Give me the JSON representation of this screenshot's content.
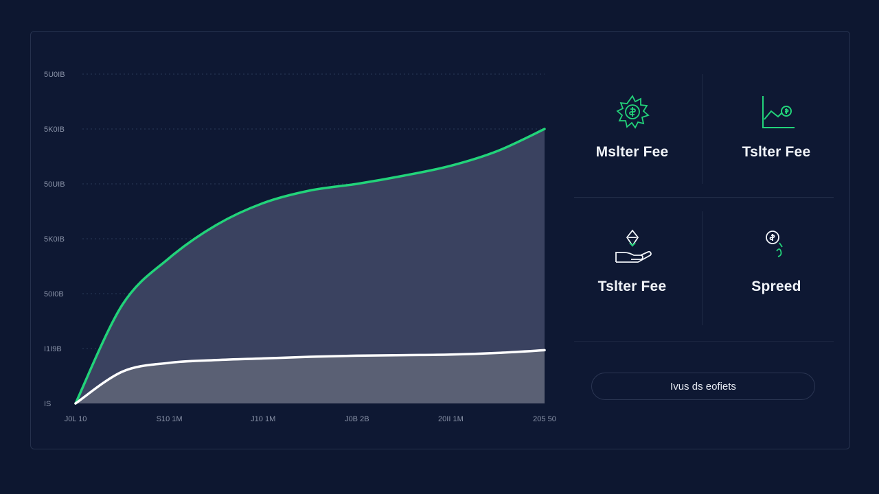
{
  "chart_data": {
    "type": "area",
    "y_tick_labels": [
      "5U0IB",
      "5K0IB",
      "50UIB",
      "5K0IB",
      "50I0B",
      "I1I9B",
      "IS"
    ],
    "x_tick_labels": [
      "J0L 10",
      "S10 1M",
      "J10 1M",
      "J0B 2B",
      "20II 1M",
      "205 50"
    ],
    "grid": true,
    "ylim": [
      0,
      6
    ],
    "series": [
      {
        "color": "#22d37a",
        "fill": "#3a4260",
        "x": [
          0,
          0.5,
          1,
          1.5,
          2,
          2.5,
          3,
          3.5,
          4,
          4.5,
          5
        ],
        "values": [
          0,
          1.8,
          2.65,
          3.25,
          3.65,
          3.88,
          4.0,
          4.15,
          4.33,
          4.6,
          5.0
        ]
      },
      {
        "color": "#ffffff",
        "fill": "#5a6074",
        "x": [
          0,
          0.5,
          1,
          1.5,
          2,
          2.5,
          3,
          3.5,
          4,
          4.5,
          5
        ],
        "values": [
          0,
          0.58,
          0.74,
          0.79,
          0.82,
          0.85,
          0.87,
          0.88,
          0.89,
          0.92,
          0.97
        ]
      }
    ]
  },
  "cards": [
    {
      "label": "Mslter Fee",
      "icon": "gear-coin-icon"
    },
    {
      "label": "Tslter Fee",
      "icon": "chart-coin-icon"
    },
    {
      "label": "Tslter Fee",
      "icon": "hand-diamond-icon"
    },
    {
      "label": "Spreed",
      "icon": "coin-spread-icon"
    }
  ],
  "cta": {
    "label": "Ivus ds eofiets"
  },
  "colors": {
    "accent": "#22d37a",
    "background": "#0d1730"
  }
}
